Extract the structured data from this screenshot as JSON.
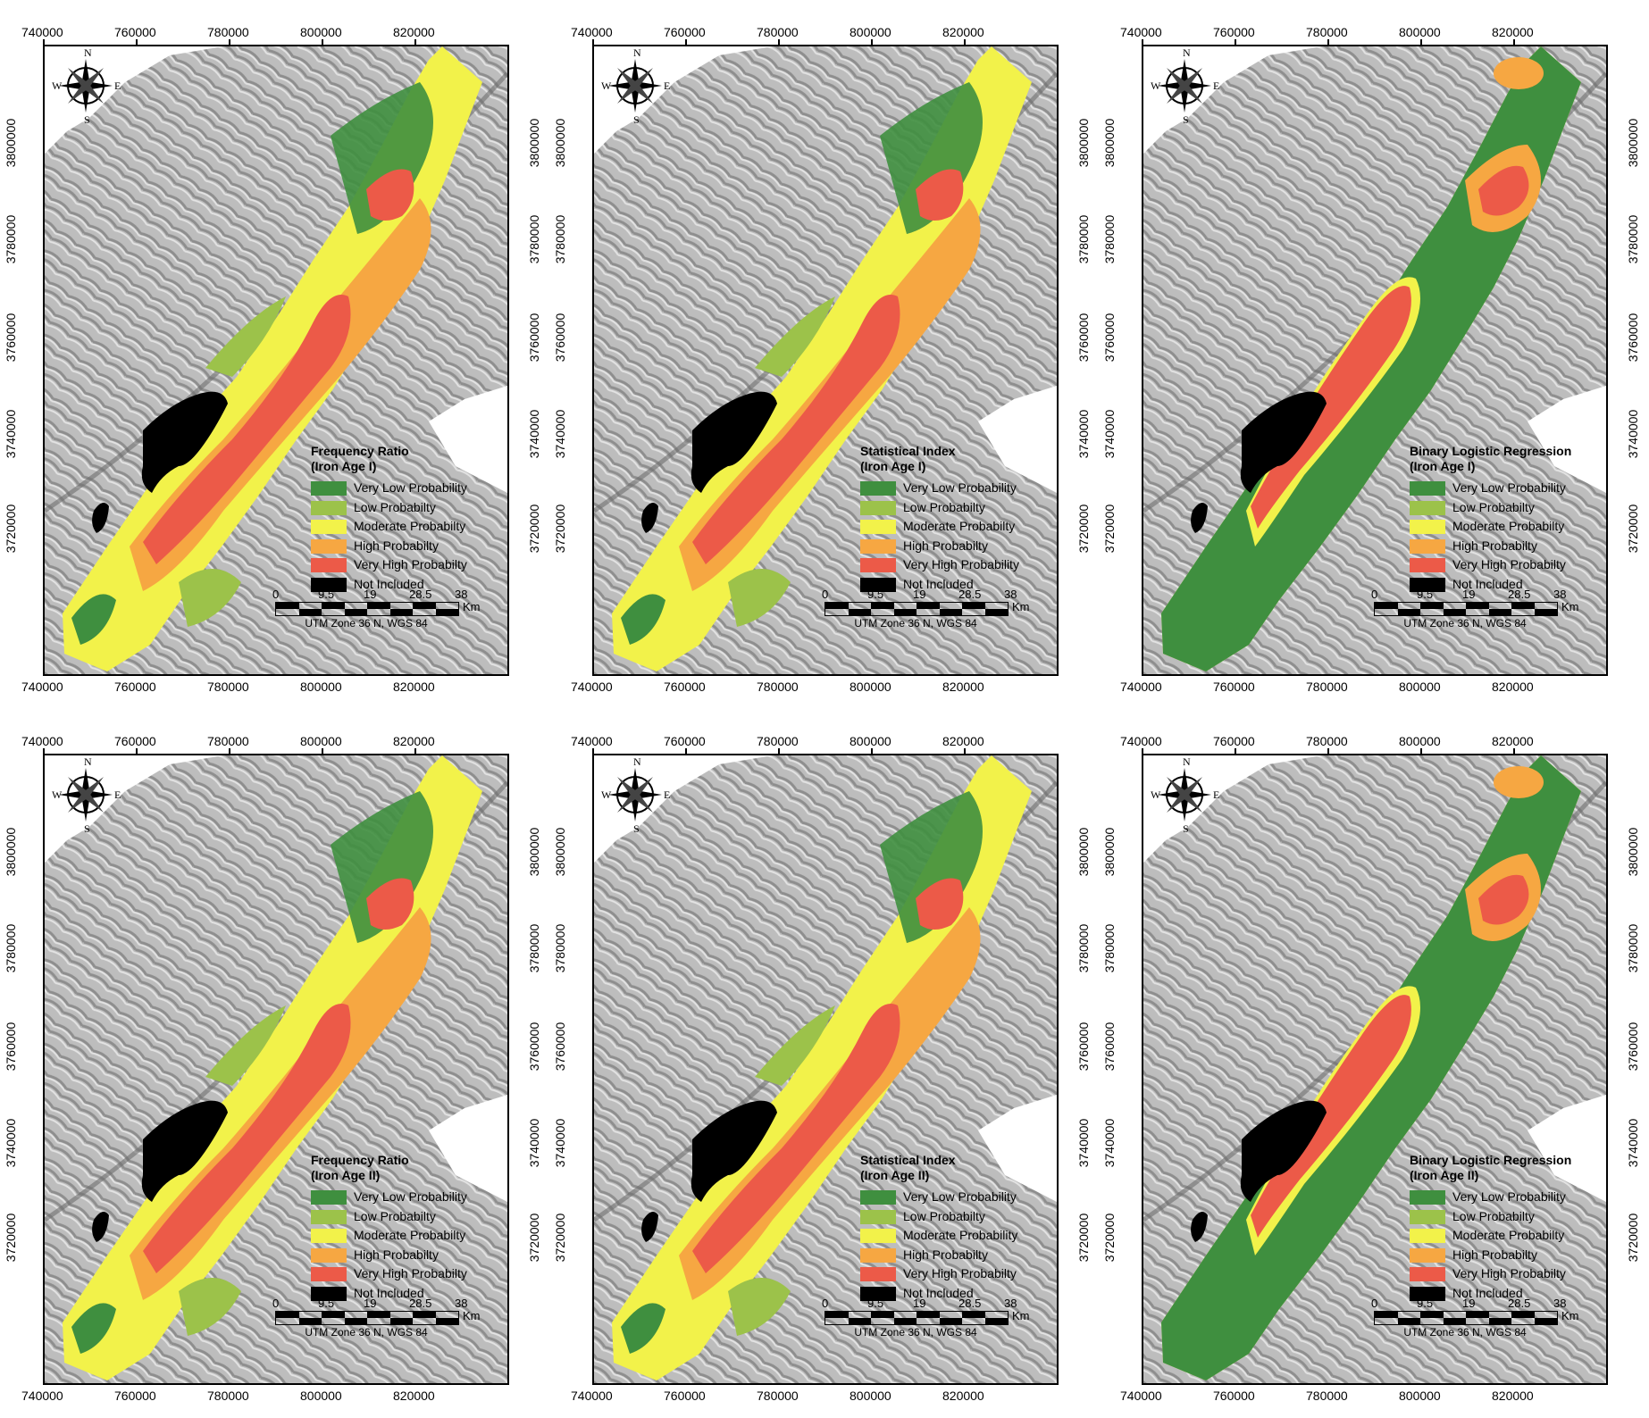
{
  "x_ticks": [
    "740000",
    "760000",
    "780000",
    "800000",
    "820000"
  ],
  "y_ticks": [
    "3800000",
    "3780000",
    "3760000",
    "3740000",
    "3720000"
  ],
  "compass": {
    "n": "N",
    "s": "S",
    "e": "E",
    "w": "W"
  },
  "legend_classes": [
    {
      "label": "Very Low Probability",
      "color": "#3f8f3f"
    },
    {
      "label": "Low Probabilty",
      "color": "#9cc24a"
    },
    {
      "label": "Moderate Probabilty",
      "color": "#f2f24a"
    },
    {
      "label": "High Probabilty",
      "color": "#f6a742"
    },
    {
      "label": "Very High Probabilty",
      "color": "#ec5a48"
    },
    {
      "label": "Not Included",
      "color": "#000000"
    }
  ],
  "scale_bar": {
    "ticks": [
      "0",
      "9.5",
      "19",
      "28.5",
      "38"
    ],
    "unit": "Km",
    "crs": "UTM Zone 36 N, WGS 84"
  },
  "panels": [
    {
      "title": "Frequency Ratio",
      "subtitle": "(Iron Age I)",
      "labels": [
        "Very Low Probability",
        "Low Probabilty",
        "Moderate Probabilty",
        "High Probabilty",
        "Very High Probabilty",
        "Not Included"
      ]
    },
    {
      "title": "Statistical Index",
      "subtitle": "(Iron Age I)",
      "labels": [
        "Very Low Probability",
        "Low Probabilty",
        "Moderate Probabilty",
        "High Probabilty",
        "Very High Probability",
        "Not Included"
      ]
    },
    {
      "title": "Binary Logistic Regression",
      "subtitle": "(Iron Age I)",
      "labels": [
        "Very Low Probability",
        "Low Probabilty",
        "Moderate Probabilty",
        "High Probabilty",
        "Very High Probabilty",
        "Not Included"
      ]
    },
    {
      "title": "Frequency Ratio",
      "subtitle": "(Iron Age II)",
      "labels": [
        "Very Low Probability",
        "Low Probabilty",
        "Moderate Probabilty",
        "High Probabilty",
        "Very High Probabilty",
        "Not Included"
      ]
    },
    {
      "title": "Statistical Index",
      "subtitle": "(Iron Age II)",
      "labels": [
        "Very Low Probability",
        "Low Probabilty",
        "Moderate Probability",
        "High Probabilty",
        "Very High Probabilty",
        "Not Included"
      ]
    },
    {
      "title": "Binary Logistic Regression",
      "subtitle": "(Iron Age II)",
      "labels": [
        "Very Low Probability",
        "Low Probabilty",
        "Moderate Probabilty",
        "High Probabilty",
        "Very High Probabilty",
        "Not Included"
      ]
    }
  ]
}
